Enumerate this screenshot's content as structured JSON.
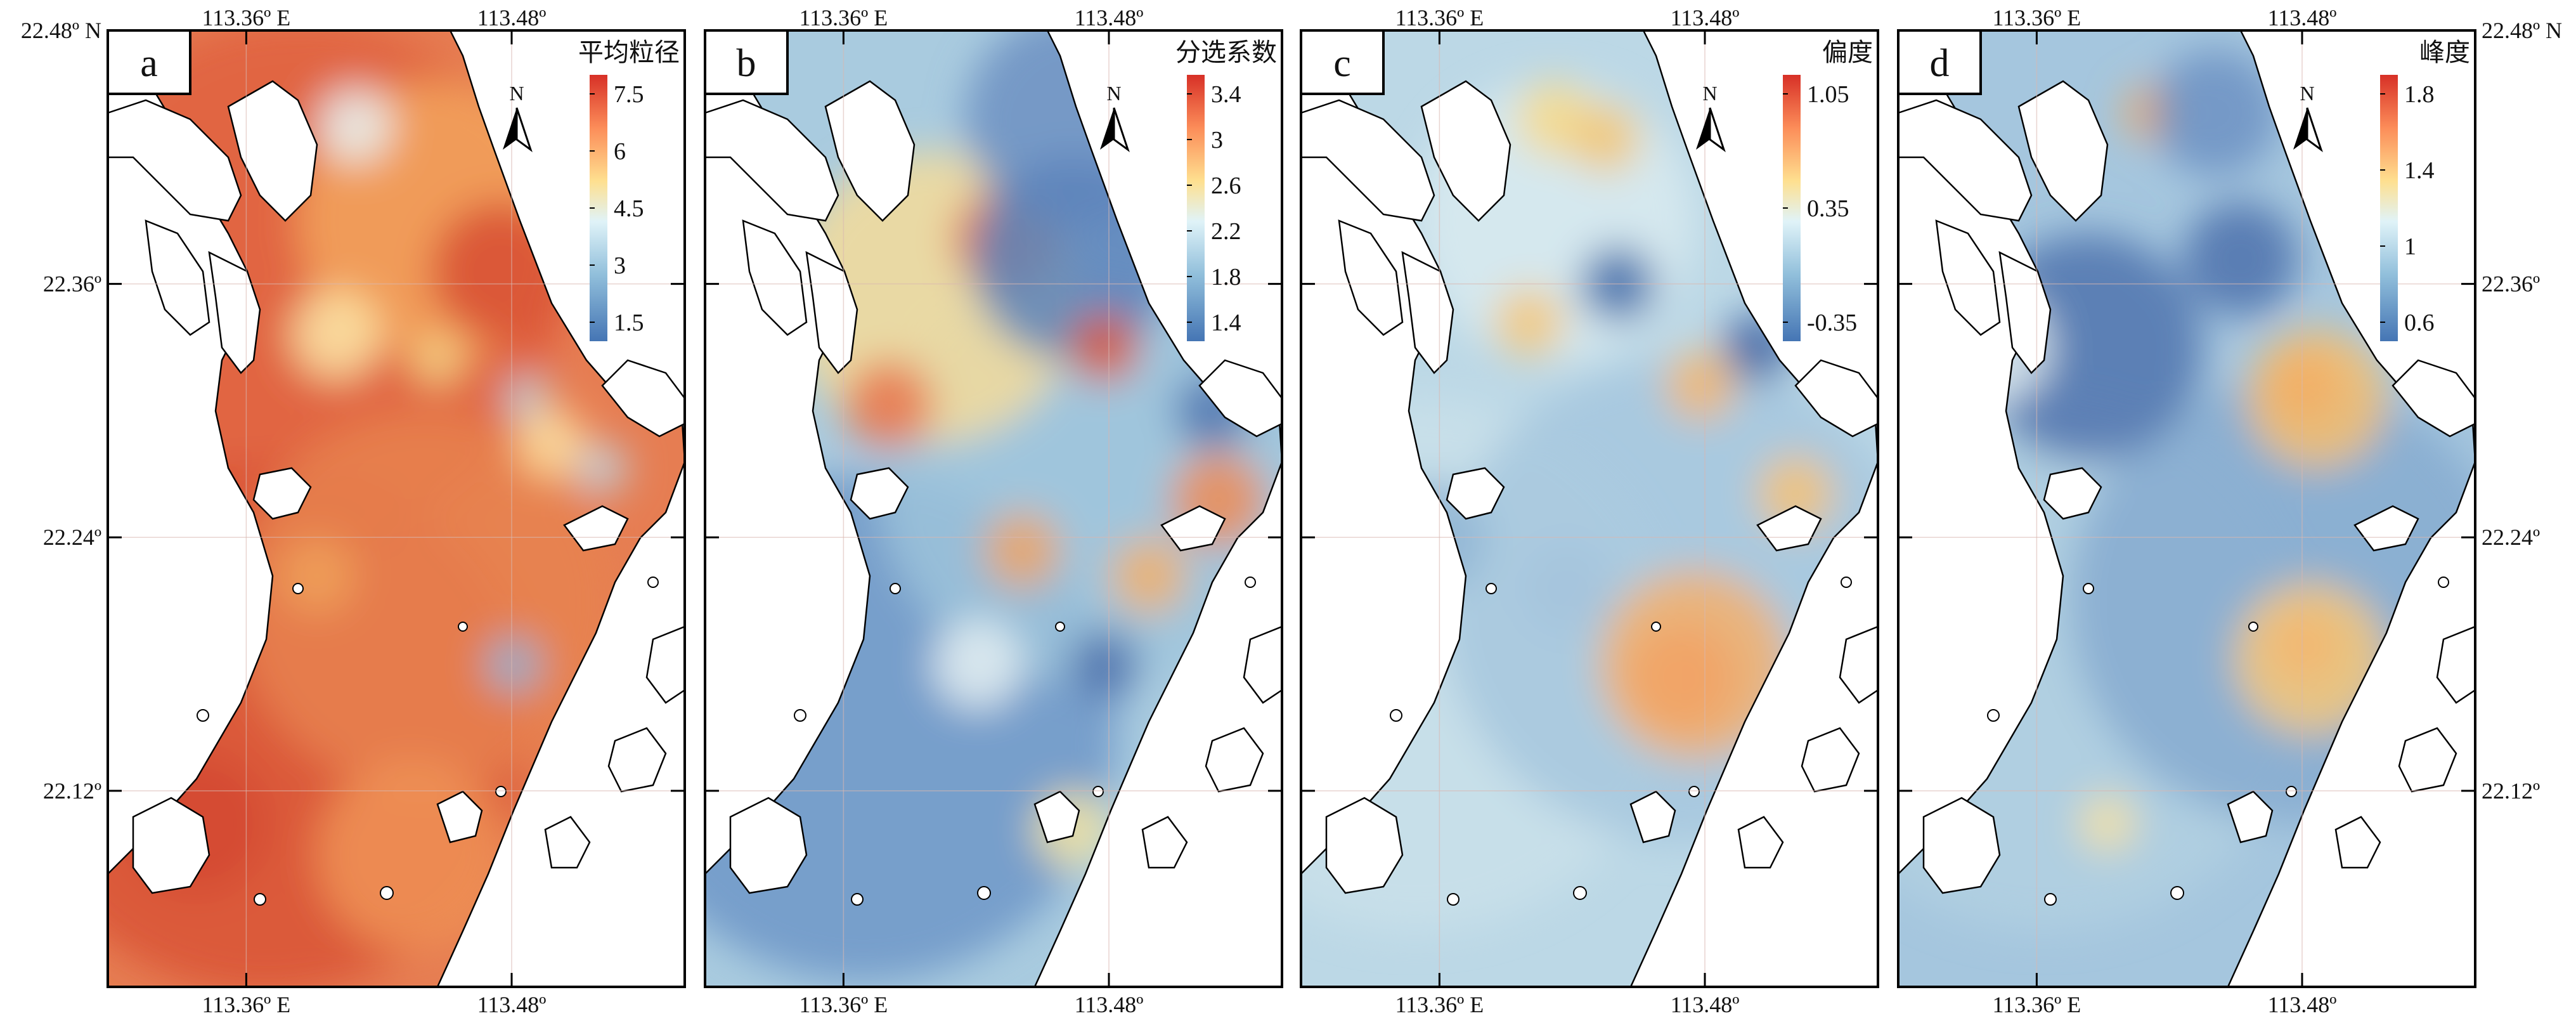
{
  "axes": {
    "lon_ticks": [
      "113.36º E",
      "113.48º"
    ],
    "lat_ticks_left": [
      "22.48º N",
      "22.36º",
      "22.24º",
      "22.12º"
    ],
    "lat_ticks_right": [
      "22.48º N",
      "22.36º",
      "22.24º",
      "22.12º"
    ]
  },
  "north_label": "N",
  "panels": [
    {
      "letter": "a",
      "variable": "平均粒径",
      "colorbar_ticks": [
        "7.5",
        "6",
        "4.5",
        "3",
        "1.5"
      ],
      "palette": "orange-dominant",
      "base_color": "#e67d52"
    },
    {
      "letter": "b",
      "variable": "分选系数",
      "colorbar_ticks": [
        "3.4",
        "3",
        "2.6",
        "2.2",
        "1.8",
        "1.4"
      ],
      "palette": "mixed-blue",
      "base_color": "#a9cbdf"
    },
    {
      "letter": "c",
      "variable": "偏度",
      "colorbar_ticks": [
        "1.05",
        "0.35",
        "-0.35"
      ],
      "palette": "light-blue",
      "base_color": "#bcd8e6"
    },
    {
      "letter": "d",
      "variable": "峰度",
      "colorbar_ticks": [
        "1.8",
        "1.4",
        "1",
        "0.6"
      ],
      "palette": "mid-blue",
      "base_color": "#a5c6de"
    }
  ],
  "colors": {
    "cb_red": "#d73027",
    "cb_orange": "#fc8d59",
    "cb_yellow": "#fee090",
    "cb_lightblue": "#e0f3f8",
    "cb_blue": "#91bfdb",
    "cb_darkblue": "#4575b4",
    "land": "#ffffff",
    "coast": "#000000"
  }
}
